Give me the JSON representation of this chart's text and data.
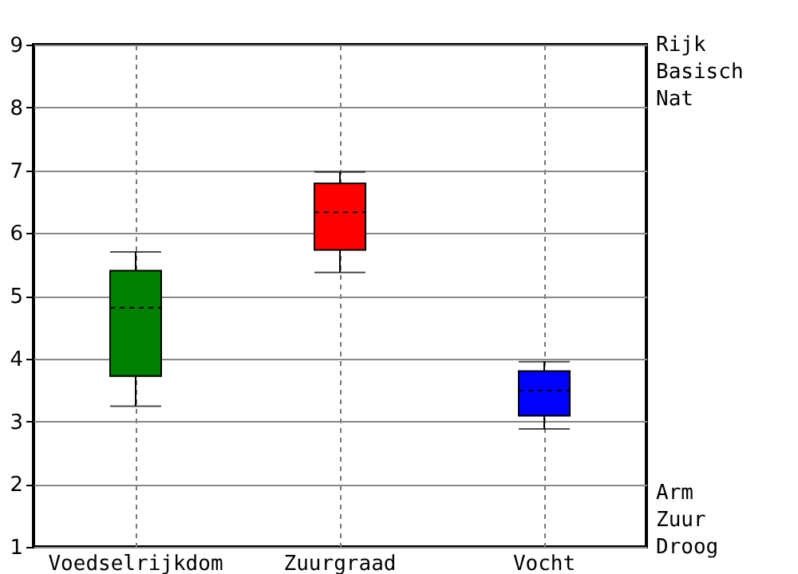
{
  "chart_data": {
    "type": "box",
    "categories": [
      "Voedselrijkdom",
      "Zuurgraad",
      "Vocht"
    ],
    "boxes": [
      {
        "low": 3.24,
        "q1": 3.72,
        "median": 4.81,
        "q3": 5.4,
        "high": 5.7
      },
      {
        "low": 5.37,
        "q1": 5.73,
        "median": 6.33,
        "q3": 6.79,
        "high": 6.97
      },
      {
        "low": 2.88,
        "q1": 3.09,
        "median": 3.49,
        "q3": 3.8,
        "high": 3.95
      }
    ],
    "colors": [
      "#008000",
      "#ff0000",
      "#0000ff"
    ],
    "ylim": [
      1,
      9
    ],
    "yticks": [
      1,
      2,
      3,
      4,
      5,
      6,
      7,
      8,
      9
    ],
    "grid": true,
    "annotations": [
      "Rijk",
      "Basisch",
      "Nat",
      "Arm",
      "Zuur",
      "Droog"
    ]
  }
}
